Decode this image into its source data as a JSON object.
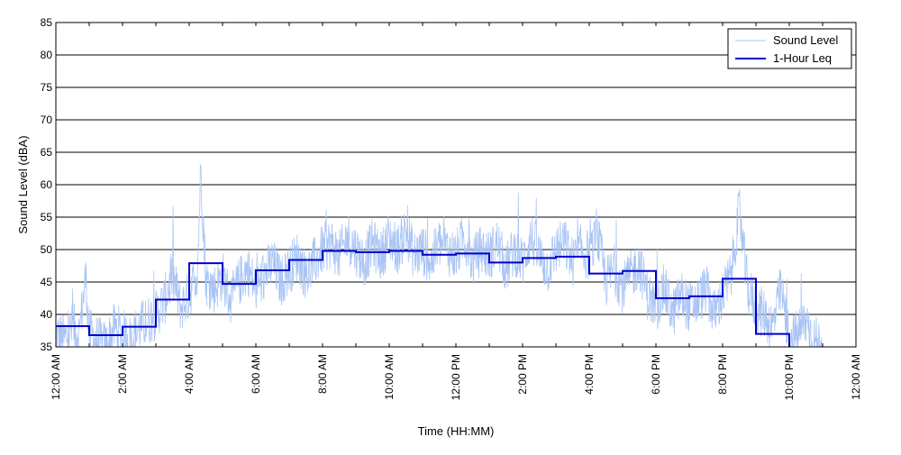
{
  "chart_data": {
    "type": "line",
    "xlabel": "Time (HH:MM)",
    "ylabel": "Sound Level (dBA)",
    "xlim_hours": [
      0,
      24
    ],
    "ylim": [
      35,
      85
    ],
    "y_ticks": [
      35,
      40,
      45,
      50,
      55,
      60,
      65,
      70,
      75,
      80,
      85
    ],
    "x_ticks": [
      {
        "hour": 0,
        "label": "12:00 AM"
      },
      {
        "hour": 2,
        "label": "2:00 AM"
      },
      {
        "hour": 4,
        "label": "4:00 AM"
      },
      {
        "hour": 6,
        "label": "6:00 AM"
      },
      {
        "hour": 8,
        "label": "8:00 AM"
      },
      {
        "hour": 10,
        "label": "10:00 AM"
      },
      {
        "hour": 12,
        "label": "12:00 PM"
      },
      {
        "hour": 14,
        "label": "2:00 PM"
      },
      {
        "hour": 16,
        "label": "4:00 PM"
      },
      {
        "hour": 18,
        "label": "6:00 PM"
      },
      {
        "hour": 20,
        "label": "8:00 PM"
      },
      {
        "hour": 22,
        "label": "10:00 PM"
      },
      {
        "hour": 24,
        "label": "12:00 AM"
      }
    ],
    "grid": "horizontal",
    "legend_position": "top-right",
    "series": [
      {
        "name": "Sound Level",
        "color": "#a9c4f5",
        "style": "noisy-line",
        "hours": [
          0.0,
          0.25,
          0.5,
          0.7,
          0.9,
          1.0,
          1.25,
          1.5,
          1.75,
          2.0,
          2.25,
          2.5,
          2.75,
          3.0,
          3.25,
          3.5,
          3.75,
          4.0,
          4.25,
          4.35,
          4.5,
          4.75,
          5.0,
          5.25,
          5.5,
          5.75,
          6.0,
          6.25,
          6.5,
          6.75,
          7.0,
          7.25,
          7.5,
          7.75,
          8.0,
          8.25,
          8.5,
          8.75,
          9.0,
          9.25,
          9.5,
          9.75,
          10.0,
          10.25,
          10.5,
          10.75,
          11.0,
          11.25,
          11.5,
          11.75,
          12.0,
          12.25,
          12.5,
          12.75,
          13.0,
          13.25,
          13.5,
          13.75,
          14.0,
          14.25,
          14.5,
          14.75,
          15.0,
          15.25,
          15.5,
          15.75,
          16.0,
          16.25,
          16.5,
          16.75,
          17.0,
          17.25,
          17.5,
          17.75,
          18.0,
          18.25,
          18.5,
          18.75,
          19.0,
          19.25,
          19.5,
          19.75,
          20.0,
          20.25,
          20.5,
          20.75,
          21.0,
          21.25,
          21.5,
          21.75,
          22.0,
          22.25,
          22.5,
          22.75,
          23.0
        ],
        "values": [
          37,
          36,
          38,
          37,
          46,
          37,
          36,
          35,
          38,
          37,
          36,
          38,
          39,
          40,
          42,
          46,
          41,
          43,
          47,
          63,
          45,
          44,
          46,
          42,
          45,
          47,
          44,
          46,
          48,
          45,
          47,
          49,
          46,
          48,
          50,
          51,
          49,
          52,
          50,
          48,
          51,
          49,
          52,
          50,
          53,
          49,
          50,
          48,
          51,
          50,
          49,
          52,
          48,
          50,
          49,
          51,
          47,
          50,
          48,
          52,
          49,
          47,
          50,
          51,
          48,
          50,
          49,
          52,
          45,
          47,
          44,
          46,
          48,
          43,
          41,
          44,
          40,
          43,
          41,
          42,
          44,
          40,
          43,
          46,
          56,
          44,
          41,
          40,
          38,
          44,
          36,
          37,
          39,
          36,
          35
        ]
      },
      {
        "name": "1-Hour Leq",
        "color": "#0000cc",
        "style": "step",
        "values": [
          38.2,
          36.8,
          38.1,
          42.3,
          47.9,
          44.7,
          46.8,
          48.4,
          49.8,
          49.6,
          49.8,
          49.2,
          49.4,
          48.0,
          48.7,
          48.9,
          46.3,
          46.7,
          42.5,
          42.8,
          45.5,
          37.0,
          null,
          null
        ]
      }
    ]
  }
}
